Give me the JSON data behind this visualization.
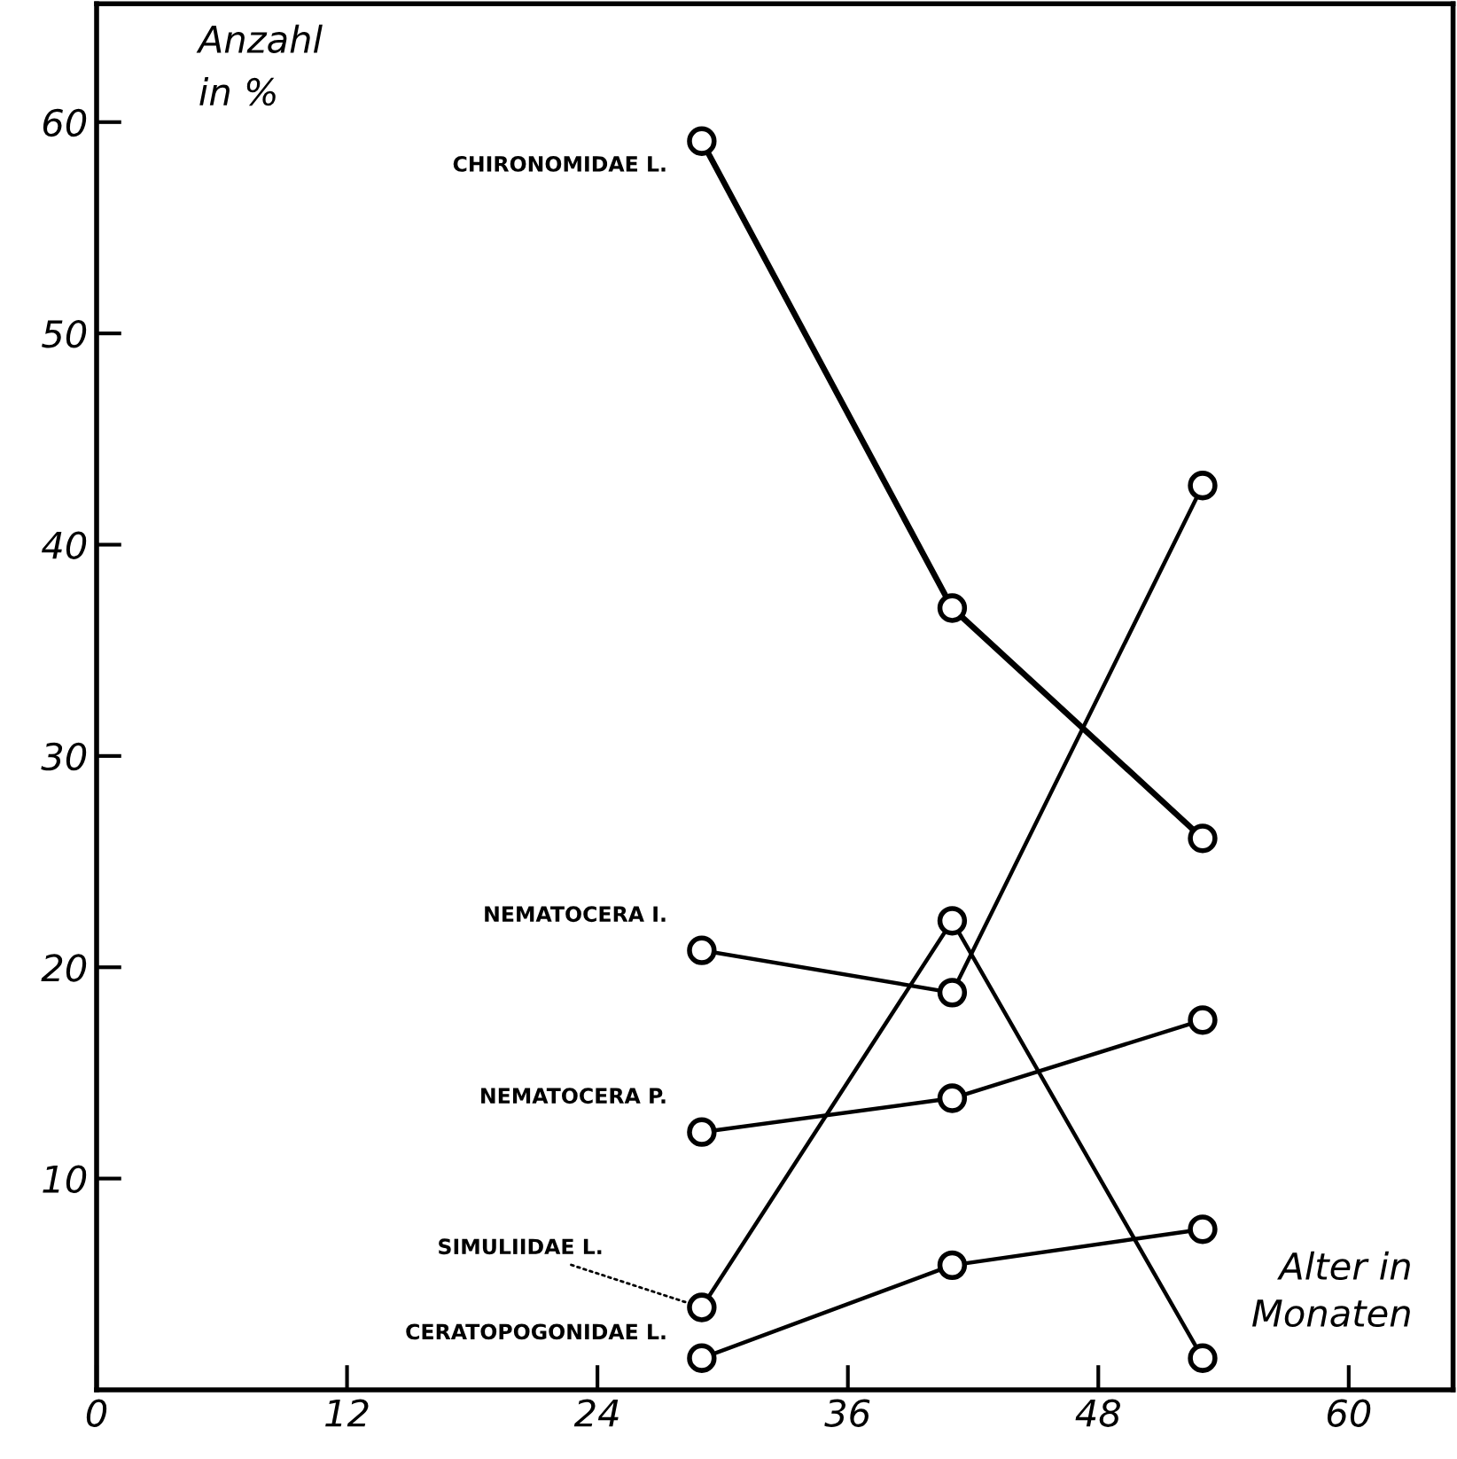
{
  "chart_data": {
    "type": "line",
    "xlabel": "Alter in Monaten",
    "ylabel": "Anzahl in %",
    "x": [
      29,
      41,
      53
    ],
    "series": [
      {
        "name": "CHIRONOMIDAE L.",
        "color": "#000000",
        "values": [
          59.1,
          37.0,
          26.1
        ]
      },
      {
        "name": "NEMATOCERA I.",
        "color": "#000000",
        "values": [
          20.8,
          18.8,
          42.8
        ]
      },
      {
        "name": "NEMATOCERA P.",
        "color": "#000000",
        "values": [
          12.2,
          13.8,
          17.5
        ]
      },
      {
        "name": "SIMULIIDAE L.",
        "color": "#000000",
        "values": [
          3.9,
          22.2,
          1.5
        ]
      },
      {
        "name": "CERATOPOGONIDAE L.",
        "color": "#000000",
        "values": [
          1.5,
          5.9,
          7.6
        ]
      }
    ],
    "xlim": [
      0,
      65
    ],
    "ylim": [
      0,
      65.6
    ],
    "xticks": [
      0,
      12,
      24,
      36,
      48,
      60
    ],
    "yticks": [
      10,
      20,
      30,
      40,
      50,
      60
    ],
    "marker": "circle",
    "line_style": "solid",
    "grid": false,
    "legend": false
  }
}
